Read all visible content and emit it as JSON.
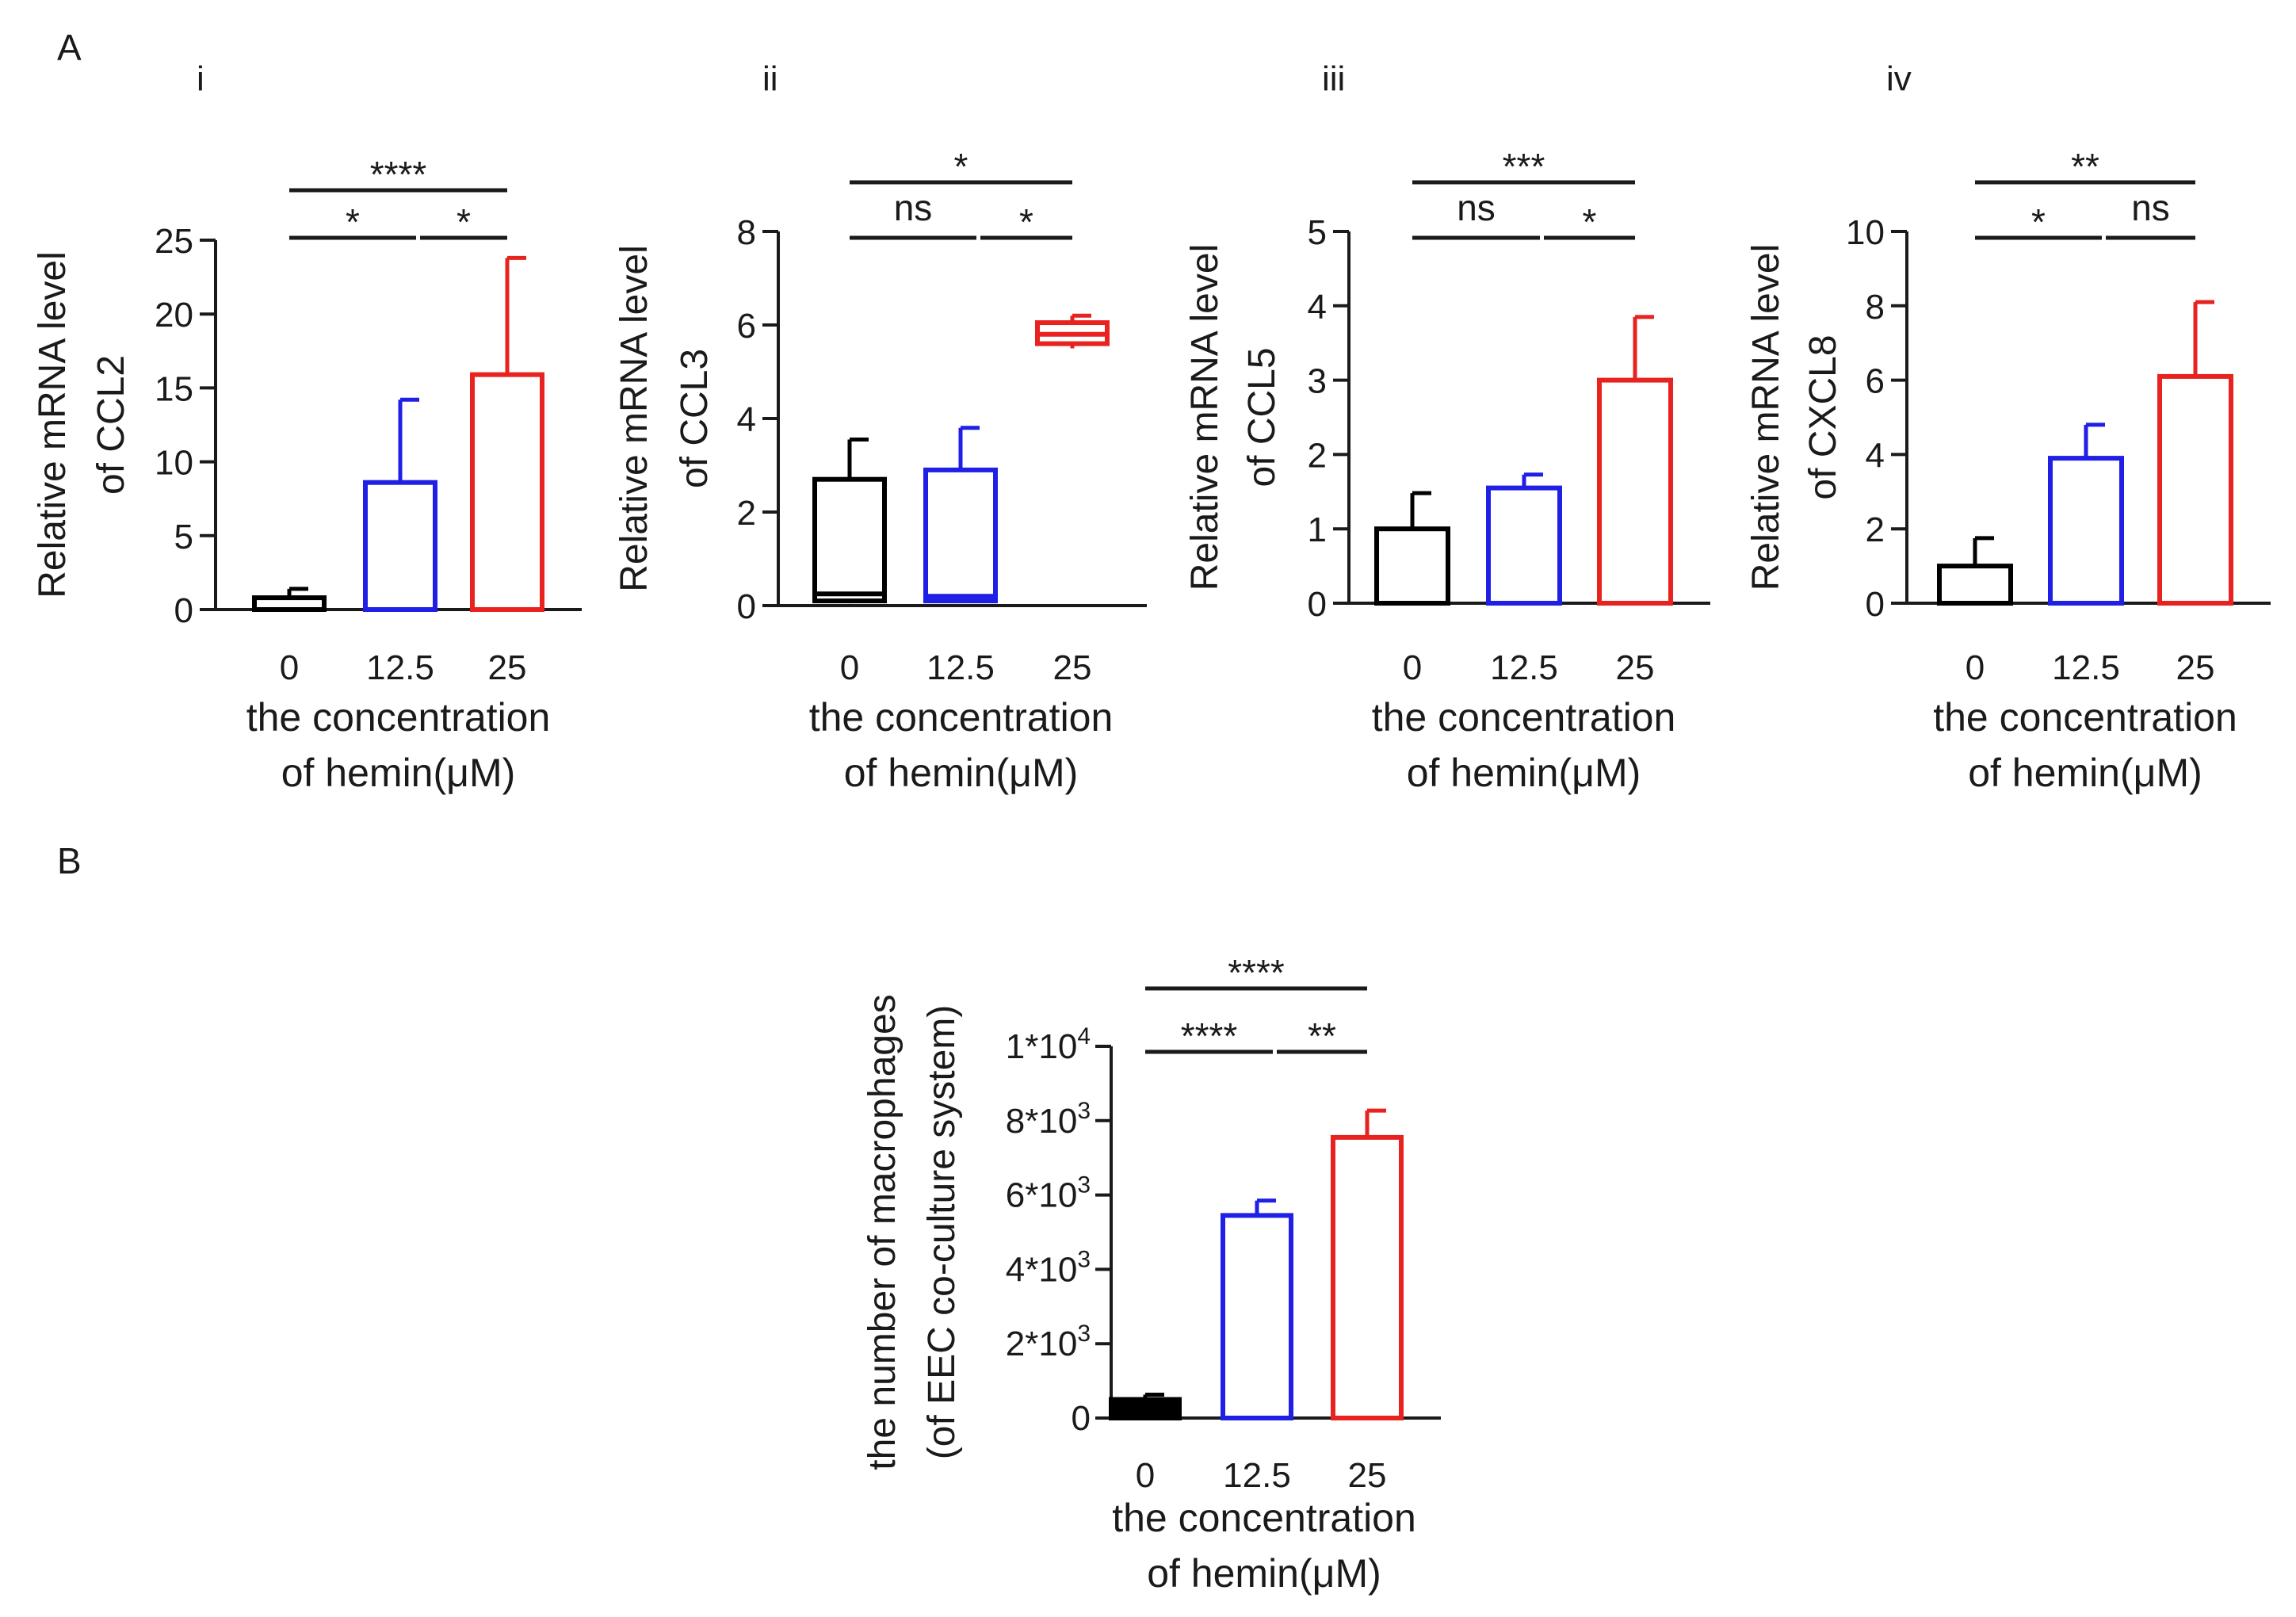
{
  "figure": {
    "panel_a_label": "A",
    "panel_b_label": "B"
  },
  "colors": {
    "control": "#000000",
    "low_dose": "#1f1fe6",
    "high_dose": "#e8231f"
  },
  "chart_data": [
    {
      "id": "i",
      "type": "bar",
      "subpanel_label": "i",
      "categories": [
        "0",
        "12.5",
        "25"
      ],
      "values": [
        0.8,
        8.6,
        15.9
      ],
      "errors": [
        0.6,
        5.6,
        7.9
      ],
      "ylabel": [
        "Relative mRNA level",
        "of CCL2"
      ],
      "xlabel": [
        "the concentration",
        "of hemin(μM)"
      ],
      "ylim": [
        0,
        25
      ],
      "yticks": [
        "0",
        "5",
        "10",
        "15",
        "20",
        "25"
      ],
      "significance": [
        {
          "from": 0,
          "to": 1,
          "level": 1,
          "label": "*"
        },
        {
          "from": 1,
          "to": 2,
          "level": 1,
          "label": "*"
        },
        {
          "from": 0,
          "to": 2,
          "level": 2,
          "label": "****"
        }
      ]
    },
    {
      "id": "ii",
      "type": "box",
      "subpanel_label": "ii",
      "categories": [
        "0",
        "12.5",
        "25"
      ],
      "boxes": [
        {
          "min": 0.05,
          "q1": 0.1,
          "median": 0.25,
          "q3": 2.7,
          "max": 3.55
        },
        {
          "min": 0.05,
          "q1": 0.1,
          "median": 0.2,
          "q3": 2.9,
          "max": 3.8
        },
        {
          "min": 5.5,
          "q1": 5.6,
          "median": 5.8,
          "q3": 6.05,
          "max": 6.2
        }
      ],
      "ylabel": [
        "Relative mRNA level",
        "of CCL3"
      ],
      "xlabel": [
        "the concentration",
        "of hemin(μM)"
      ],
      "ylim": [
        0,
        8
      ],
      "yticks": [
        "0",
        "2",
        "4",
        "6",
        "8"
      ],
      "significance": [
        {
          "from": 0,
          "to": 1,
          "level": 1,
          "label": "ns"
        },
        {
          "from": 1,
          "to": 2,
          "level": 1,
          "label": "*"
        },
        {
          "from": 0,
          "to": 2,
          "level": 2,
          "label": "*"
        }
      ]
    },
    {
      "id": "iii",
      "type": "bar",
      "subpanel_label": "iii",
      "categories": [
        "0",
        "12.5",
        "25"
      ],
      "values": [
        1.0,
        1.55,
        3.0
      ],
      "errors": [
        0.48,
        0.18,
        0.85
      ],
      "ylabel": [
        "Relative mRNA level",
        "of CCL5"
      ],
      "xlabel": [
        "the concentration",
        "of hemin(μM)"
      ],
      "ylim": [
        0,
        5
      ],
      "yticks": [
        "0",
        "1",
        "2",
        "3",
        "4",
        "5"
      ],
      "significance": [
        {
          "from": 0,
          "to": 1,
          "level": 1,
          "label": "ns"
        },
        {
          "from": 1,
          "to": 2,
          "level": 1,
          "label": "*"
        },
        {
          "from": 0,
          "to": 2,
          "level": 2,
          "label": "***"
        }
      ]
    },
    {
      "id": "iv",
      "type": "bar",
      "subpanel_label": "iv",
      "categories": [
        "0",
        "12.5",
        "25"
      ],
      "values": [
        1.0,
        3.9,
        6.1
      ],
      "errors": [
        0.75,
        0.9,
        2.0
      ],
      "ylabel": [
        "Relative mRNA level",
        "of CXCL8"
      ],
      "xlabel": [
        "the concentration",
        "of hemin(μM)"
      ],
      "ylim": [
        0,
        10
      ],
      "yticks": [
        "0",
        "2",
        "4",
        "6",
        "8",
        "10"
      ],
      "significance": [
        {
          "from": 0,
          "to": 1,
          "level": 1,
          "label": "*"
        },
        {
          "from": 1,
          "to": 2,
          "level": 1,
          "label": "ns"
        },
        {
          "from": 0,
          "to": 2,
          "level": 2,
          "label": "**"
        }
      ]
    },
    {
      "id": "B",
      "type": "bar",
      "subpanel_label": "",
      "categories": [
        "0",
        "12.5",
        "25"
      ],
      "values": [
        500,
        5450,
        7550
      ],
      "errors": [
        130,
        400,
        720
      ],
      "filled_first_bar": true,
      "ylabel": [
        "the number of macrophages",
        "(of EEC co-culture system)"
      ],
      "xlabel": [
        "the concentration",
        "of hemin(μM)"
      ],
      "ylim": [
        0,
        10000
      ],
      "yticks": [
        {
          "base": "0",
          "exp": ""
        },
        {
          "base": "2*10",
          "exp": "3"
        },
        {
          "base": "4*10",
          "exp": "3"
        },
        {
          "base": "6*10",
          "exp": "3"
        },
        {
          "base": "8*10",
          "exp": "3"
        },
        {
          "base": "1*10",
          "exp": "4"
        }
      ],
      "significance": [
        {
          "from": 0,
          "to": 1,
          "level": 1,
          "label": "****"
        },
        {
          "from": 1,
          "to": 2,
          "level": 1,
          "label": "**"
        },
        {
          "from": 0,
          "to": 2,
          "level": 2,
          "label": "****"
        }
      ]
    }
  ]
}
